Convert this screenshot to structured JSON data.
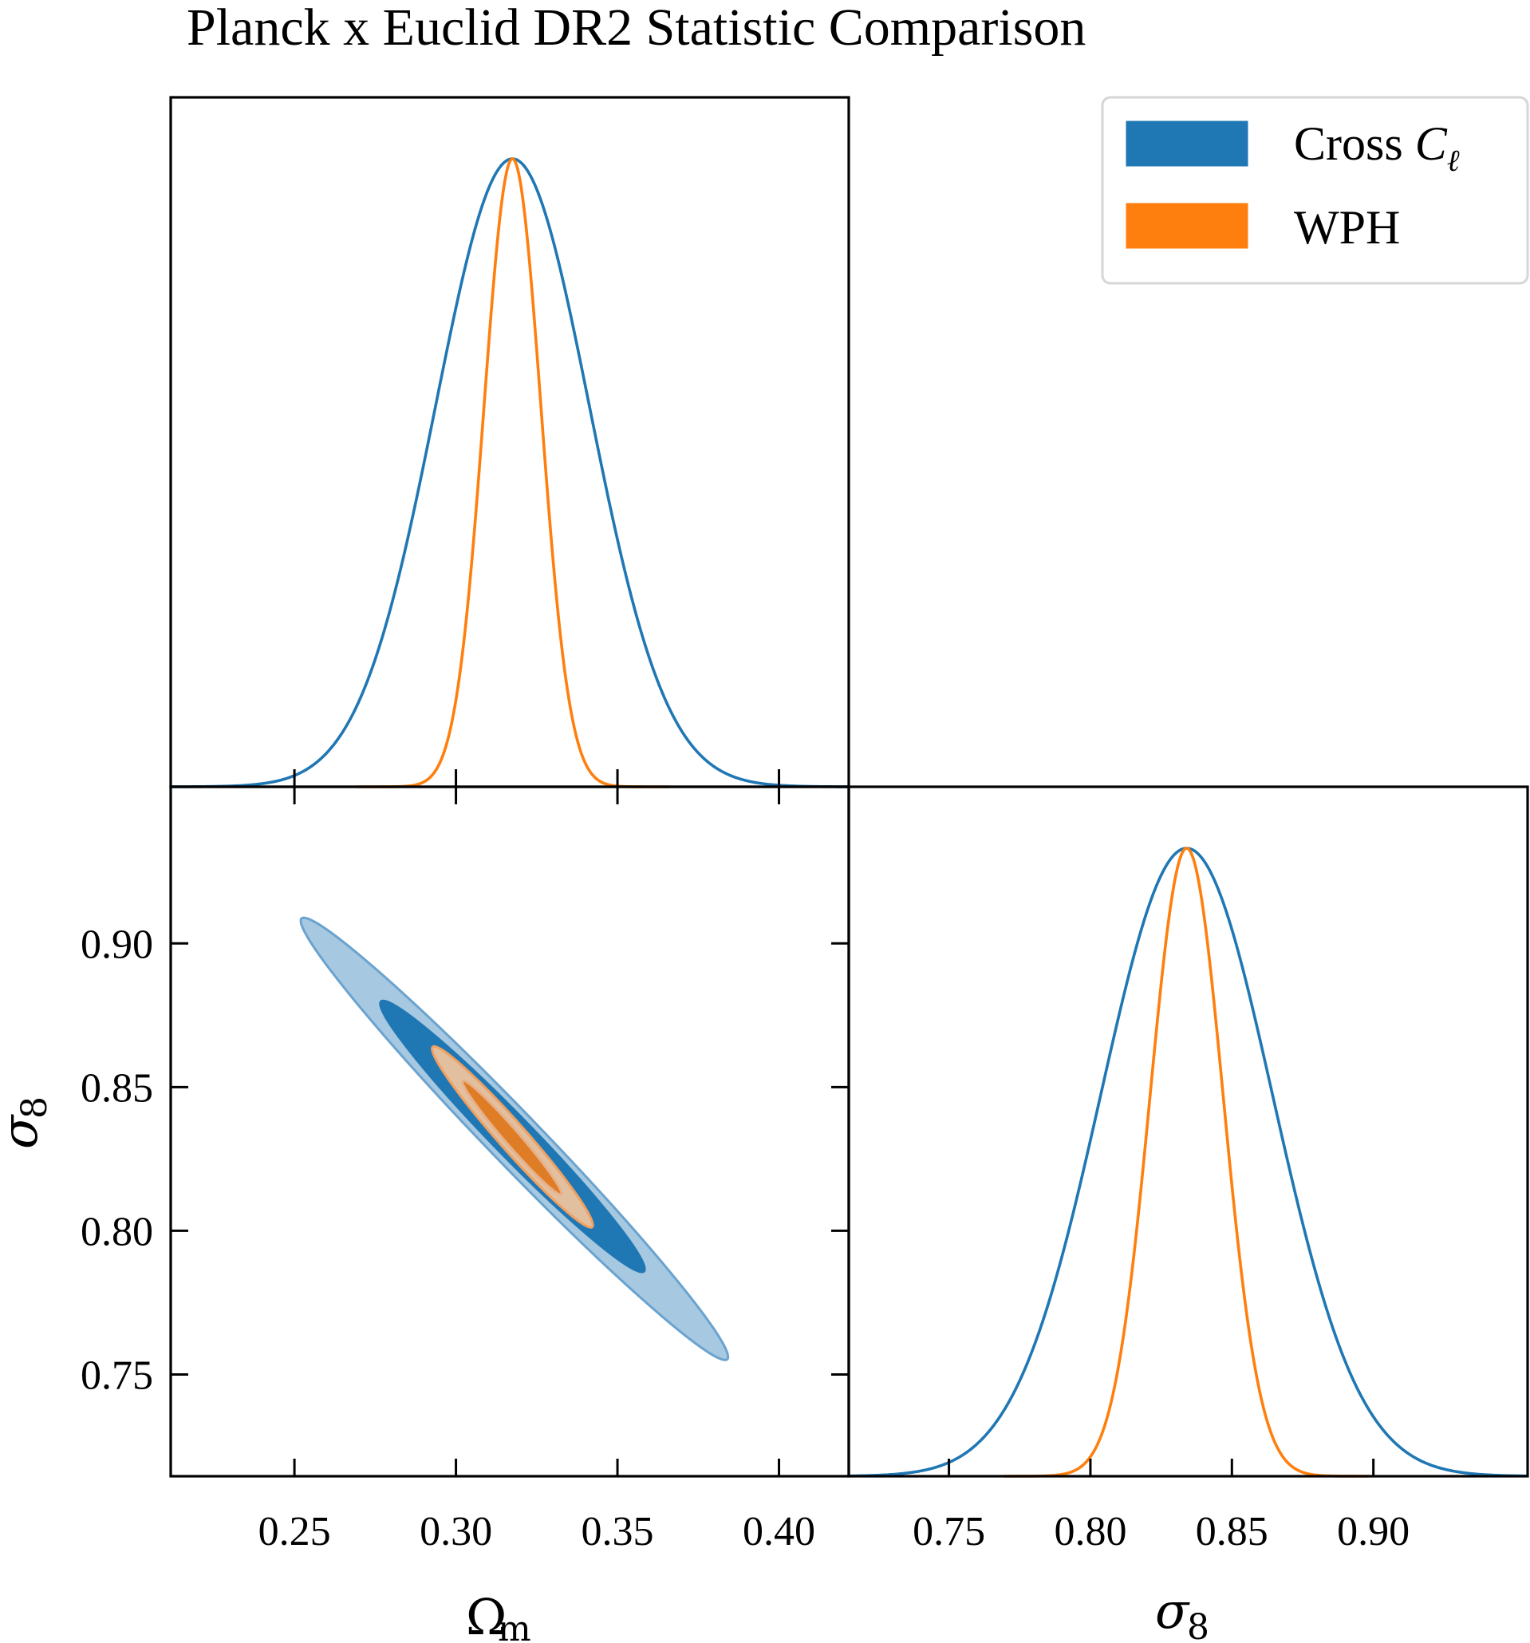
{
  "chart_data": {
    "type": "corner",
    "title": "Planck x Euclid DR2 Statistic Comparison",
    "parameters": [
      {
        "name": "Omega_m",
        "label": "Ω",
        "label_sub": "m",
        "range": [
          0.2117,
          0.4216
        ],
        "ticks": [
          0.25,
          0.3,
          0.35,
          0.4
        ],
        "tick_labels": [
          "0.25",
          "0.30",
          "0.35",
          "0.40"
        ]
      },
      {
        "name": "sigma_8",
        "label": "σ",
        "label_sub": "8",
        "range": [
          0.7146,
          0.9545
        ],
        "ticks": [
          0.75,
          0.8,
          0.85,
          0.9
        ],
        "tick_labels": [
          "0.75",
          "0.80",
          "0.85",
          "0.90"
        ]
      }
    ],
    "legend": {
      "position": "top-right",
      "entries": [
        {
          "label": "Cross ",
          "label_math": "C",
          "label_sub": "ℓ",
          "color": "#1f77b4"
        },
        {
          "label": "WPH",
          "color": "#ff7f0e"
        }
      ]
    },
    "series": [
      {
        "name": "Cross C_ell",
        "color": "#1f77b4",
        "omega_m": {
          "mean": 0.3175,
          "sigma": 0.0238
        },
        "sigma_8": {
          "mean": 0.834,
          "sigma": 0.0304
        },
        "contours": {
          "sigma2": {
            "omega_m": [
              0.2522,
              0.384
            ],
            "sigma_8": [
              0.9087,
              0.7553
            ],
            "fill": "#a6c8e0",
            "edge": "#6aa3cf"
          },
          "sigma1": {
            "omega_m": [
              0.2768,
              0.3582
            ],
            "sigma_8": [
              0.8798,
              0.7859
            ],
            "fill": "#1f77b4",
            "edge": "#1f77b4"
          }
        }
      },
      {
        "name": "WPH",
        "color": "#ff7f0e",
        "omega_m": {
          "mean": 0.3175,
          "sigma": 0.0088
        },
        "sigma_8": {
          "mean": 0.834,
          "sigma": 0.0129
        },
        "contours": {
          "sigma2": {
            "omega_m": [
              0.2928,
              0.3422
            ],
            "sigma_8": [
              0.864,
              0.8013
            ],
            "fill": "#e2bf9f",
            "edge": "#f0a060"
          },
          "sigma1": {
            "omega_m": [
              0.3021,
              0.3326
            ],
            "sigma_8": [
              0.8522,
              0.8127
            ],
            "fill": "#df7c26",
            "edge": "#e8b088"
          }
        }
      }
    ]
  }
}
